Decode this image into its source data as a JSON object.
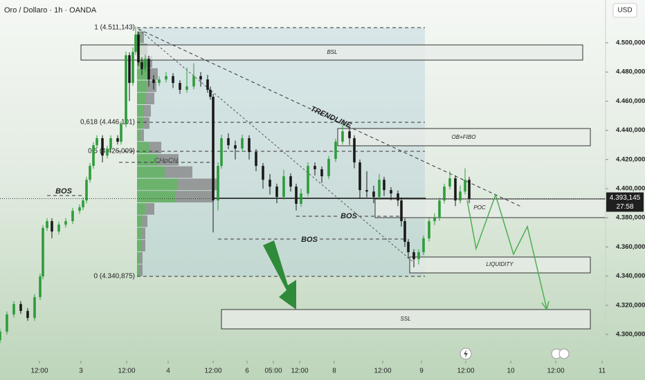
{
  "chart_data": {
    "type": "candlestick",
    "title": "Oro / Dollaro · 1h · OANDA",
    "currency": "USD",
    "up_color": "#2e9c3c",
    "down_color": "#1a1a1a",
    "xlim": [
      0,
      175
    ],
    "ylim": [
      4282000,
      4529400
    ],
    "yticks": [
      {
        "value": 4300000,
        "label": "4.300,000"
      },
      {
        "value": 4320000,
        "label": "4.320,000"
      },
      {
        "value": 4340000,
        "label": "4.340,000"
      },
      {
        "value": 4360000,
        "label": "4.360,000"
      },
      {
        "value": 4380000,
        "label": "4.380,000"
      },
      {
        "value": 4400000,
        "label": "4.400,000"
      },
      {
        "value": 4420000,
        "label": "4.420,000"
      },
      {
        "value": 4440000,
        "label": "4.440,000"
      },
      {
        "value": 4460000,
        "label": "4.460,000"
      },
      {
        "value": 4480000,
        "label": "4.480,000"
      },
      {
        "value": 4500000,
        "label": "4.500,000"
      }
    ],
    "xticks": [
      {
        "value": 11.4,
        "label": "12:00"
      },
      {
        "value": 23.4,
        "label": "3"
      },
      {
        "value": 36.6,
        "label": "12:00"
      },
      {
        "value": 48.6,
        "label": "4"
      },
      {
        "value": 61.6,
        "label": "12:00"
      },
      {
        "value": 71.4,
        "label": "6"
      },
      {
        "value": 79,
        "label": "05:00"
      },
      {
        "value": 86.6,
        "label": "12:00"
      },
      {
        "value": 96.6,
        "label": "8"
      },
      {
        "value": 110.6,
        "label": "12:00"
      },
      {
        "value": 121.8,
        "label": "9"
      },
      {
        "value": 134.6,
        "label": "12:00"
      },
      {
        "value": 147.6,
        "label": "10"
      },
      {
        "value": 160.6,
        "label": "12:00"
      },
      {
        "value": 174,
        "label": "11"
      }
    ],
    "x": [
      0,
      2,
      4,
      6,
      8,
      10,
      11.6,
      12.4,
      13.6,
      15,
      17,
      19,
      21,
      23,
      24,
      25,
      26,
      27,
      28,
      29.6,
      31,
      32,
      34,
      35,
      36.4,
      37.4,
      38.4,
      39.2,
      40,
      41,
      42,
      43,
      44.4,
      46,
      48,
      50,
      52,
      54,
      56,
      58,
      60,
      60.8,
      61.6,
      63,
      64,
      66,
      68,
      70,
      72,
      74,
      76,
      78,
      80,
      82,
      84,
      85.6,
      87,
      89,
      91,
      93,
      95,
      97,
      99,
      101,
      102.4,
      104,
      106,
      108,
      109.6,
      111,
      113,
      115,
      116,
      117,
      118,
      119.6,
      121,
      122.4,
      124,
      125.6,
      127,
      128.4,
      130,
      131.6,
      133,
      134.4,
      135.6
    ],
    "open": [
      4296000,
      4301900,
      4313700,
      4320800,
      4316100,
      4311300,
      4325600,
      4339800,
      4373000,
      4377700,
      4370600,
      4375300,
      4377700,
      4384800,
      4387200,
      4391900,
      4406100,
      4415600,
      4429800,
      4434600,
      4422700,
      4427500,
      4434600,
      4432200,
      4444100,
      4491500,
      4472500,
      4493800,
      4505700,
      4486700,
      4482000,
      4489100,
      4474900,
      4472500,
      4474900,
      4477200,
      4472500,
      4467800,
      4470100,
      4477200,
      4474900,
      4467800,
      4463000,
      4391900,
      4415600,
      4434600,
      4429800,
      4427500,
      4434600,
      4425100,
      4415600,
      4406100,
      4401400,
      4394300,
      4408500,
      4401400,
      4389600,
      4396700,
      4415600,
      4413300,
      4408500,
      4420400,
      4432200,
      4439300,
      4434600,
      4418000,
      4399000,
      4398000,
      4394300,
      4406100,
      4399000,
      4396700,
      4391900,
      4377700,
      4363500,
      4356400,
      4351600,
      4356400,
      4365900,
      4377700,
      4380000,
      4391900,
      4401400,
      4407100,
      4391900,
      4398000,
      4406100
    ],
    "high": [
      4303900,
      4315700,
      4322800,
      4322800,
      4318100,
      4327600,
      4341800,
      4375000,
      4379700,
      4379700,
      4377300,
      4379700,
      4386800,
      4389200,
      4393900,
      4408100,
      4417600,
      4431800,
      4436600,
      4436600,
      4429500,
      4436600,
      4436600,
      4446100,
      4494000,
      4493500,
      4497000,
      4511100,
      4507700,
      4490000,
      4492000,
      4491100,
      4478000,
      4477000,
      4480000,
      4479200,
      4474500,
      4483000,
      4486000,
      4480000,
      4478000,
      4470000,
      4465000,
      4418000,
      4437000,
      4438000,
      4433000,
      4437000,
      4436600,
      4427100,
      4417600,
      4410000,
      4403400,
      4413000,
      4410500,
      4403400,
      4400000,
      4418000,
      4418000,
      4415300,
      4422400,
      4434200,
      4444000,
      4442000,
      4436600,
      4420000,
      4412000,
      4402000,
      4410000,
      4408100,
      4401000,
      4398700,
      4393900,
      4379700,
      4365500,
      4358400,
      4358400,
      4367900,
      4379700,
      4383000,
      4393900,
      4403400,
      4412000,
      4409100,
      4402000,
      4414000,
      4408100
    ],
    "low": [
      4294000,
      4299900,
      4311700,
      4314100,
      4309300,
      4309300,
      4323600,
      4337800,
      4371000,
      4366000,
      4368600,
      4373300,
      4375700,
      4382800,
      4385200,
      4389900,
      4404100,
      4413600,
      4427800,
      4418000,
      4420700,
      4425500,
      4430200,
      4430200,
      4442100,
      4460000,
      4470500,
      4491800,
      4484700,
      4478000,
      4480000,
      4470000,
      4468000,
      4470500,
      4472900,
      4469000,
      4465000,
      4465800,
      4468100,
      4470000,
      4465800,
      4461000,
      4370000,
      4385000,
      4413600,
      4427000,
      4420000,
      4425500,
      4420000,
      4412000,
      4400000,
      4396000,
      4390000,
      4392300,
      4398000,
      4385000,
      4387600,
      4394700,
      4409000,
      4404000,
      4406500,
      4418400,
      4430200,
      4430000,
      4414000,
      4393000,
      4394000,
      4390000,
      4392300,
      4395000,
      4392000,
      4388000,
      4374000,
      4360000,
      4352000,
      4346000,
      4348000,
      4354400,
      4363900,
      4375000,
      4378000,
      4389900,
      4399400,
      4388000,
      4389900,
      4396000,
      4390000
    ],
    "close": [
      4301900,
      4313700,
      4320800,
      4316100,
      4311300,
      4325600,
      4339800,
      4373000,
      4377700,
      4370600,
      4375300,
      4377700,
      4384800,
      4387200,
      4391900,
      4406100,
      4415600,
      4429800,
      4434600,
      4422700,
      4427500,
      4434600,
      4432200,
      4444100,
      4491500,
      4472500,
      4493800,
      4505700,
      4486700,
      4482000,
      4489100,
      4474900,
      4472500,
      4474900,
      4477200,
      4472500,
      4467800,
      4470100,
      4477200,
      4474900,
      4467800,
      4463000,
      4391900,
      4415600,
      4434600,
      4429800,
      4427500,
      4434600,
      4425100,
      4415600,
      4406100,
      4401400,
      4394300,
      4408500,
      4401400,
      4389600,
      4396700,
      4415600,
      4413300,
      4408500,
      4420400,
      4432200,
      4439300,
      4434600,
      4418000,
      4399000,
      4398000,
      4394300,
      4406100,
      4399000,
      4396700,
      4391900,
      4377700,
      4363500,
      4356400,
      4351600,
      4356400,
      4365900,
      4377700,
      4380000,
      4391900,
      4401400,
      4407100,
      4391900,
      4398000,
      4406100,
      4393145
    ],
    "last_price_label": "4.393,145",
    "countdown": "27:58",
    "volume_profile": [
      10,
      15,
      22,
      30,
      28,
      25,
      20,
      18,
      10,
      35,
      60,
      80,
      118,
      110,
      25,
      15,
      12,
      12,
      8,
      8
    ],
    "annotations": {
      "fib_1": "1 (4.511,143)",
      "fib_618": "0,618 (4.446,101)",
      "fib_5": "0,5 (4.426,009)",
      "fib_0": "0 (4.340,875)",
      "bsl": "BSL",
      "trendline": "TRENDLINE",
      "ob_fibo": "OB+FIBO",
      "choch": "CHoCH",
      "bos_left": "BOS",
      "bos_mid": "BOS",
      "bos_low": "BOS",
      "poc": "POC",
      "liquidity": "LIQUIDITY",
      "ssl": "SSL"
    }
  }
}
